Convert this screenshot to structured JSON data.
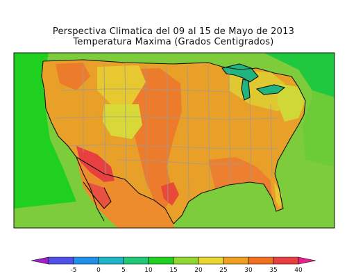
{
  "title_line1": "Perspectiva Climatica del 09 al 15 de Mayo de 2013",
  "title_line2": "Temperatura Maxima (Grados Centigrados)",
  "colorbar": {
    "ticks": [
      "-5",
      "0",
      "5",
      "10",
      "15",
      "20",
      "25",
      "30",
      "35",
      "40"
    ],
    "colors": [
      "#a020c8",
      "#5050e8",
      "#2090e8",
      "#20b4c8",
      "#20c878",
      "#20d020",
      "#90d830",
      "#e8d830",
      "#f0a020",
      "#f07020",
      "#e84040",
      "#e8208c"
    ]
  },
  "map_colors": {
    "ocean_cool": "#7ccc3c",
    "coast_green": "#20d020",
    "land_base": "#e8a028",
    "warm": "#ec7c2c",
    "hot": "#e84040",
    "mild": "#d8d838",
    "great_lakes": "#20b480"
  }
}
